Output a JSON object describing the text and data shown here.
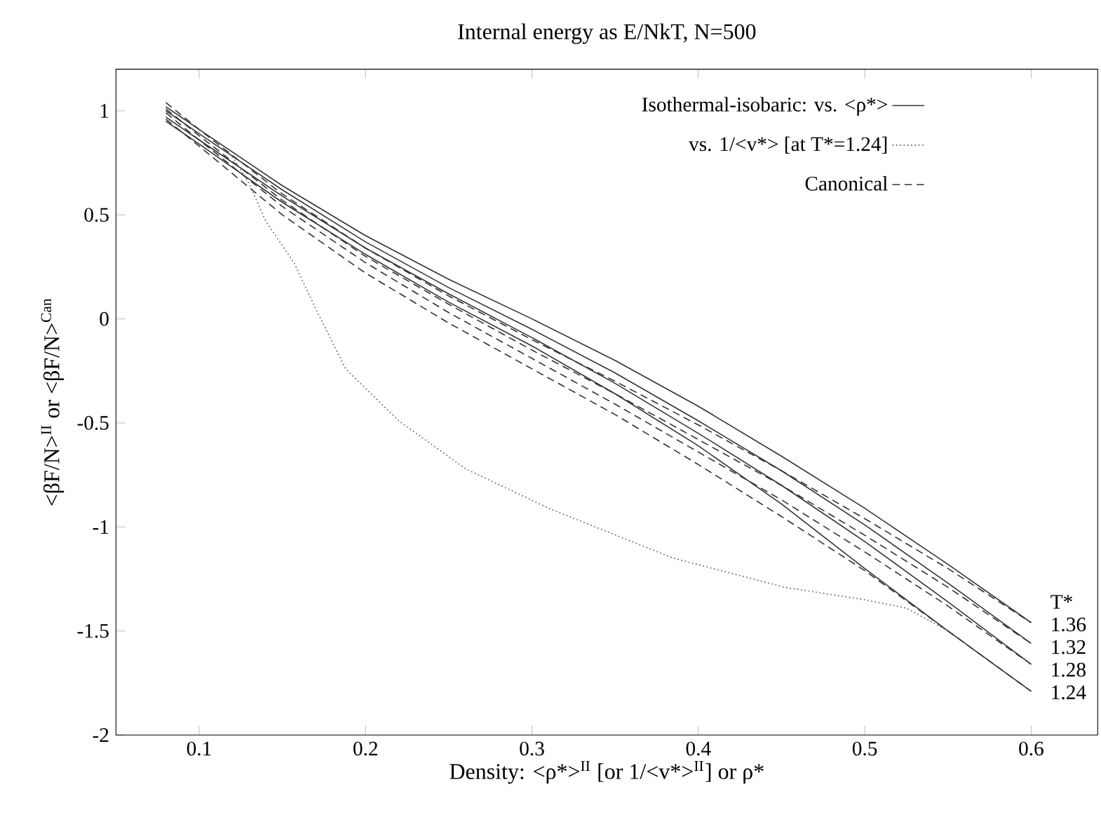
{
  "chart_data": {
    "type": "line",
    "title": "Internal energy as E/NkT, N=500",
    "xlabel": "Density: <ρ*>$^{II}$ [or 1/<v*>$^{II}$] or ρ*",
    "ylabel": "<βF/N>$^{II}$ or <βF/N>$^{Can}$",
    "xlim": [
      0.05,
      0.64
    ],
    "ylim": [
      -2,
      1.2
    ],
    "xticks": [
      0.1,
      0.2,
      0.3,
      0.4,
      0.5,
      0.6
    ],
    "yticks": [
      -2,
      -1.5,
      -1,
      -0.5,
      0,
      0.5,
      1
    ],
    "legend": "top right",
    "grid": false,
    "marker": "none",
    "series": [
      {
        "name": "Isothermal-isobaric: vs. <ρ*>",
        "color": "#333333",
        "line_style": "solid",
        "x": [
          0.08,
          0.1,
          0.15,
          0.2,
          0.25,
          0.3,
          0.35,
          0.4,
          0.45,
          0.5,
          0.55,
          0.6
        ],
        "values": [
          1.02,
          0.91,
          0.64,
          0.4,
          0.19,
          0.0,
          -0.2,
          -0.42,
          -0.66,
          -0.91,
          -1.18,
          -1.46
        ]
      },
      {
        "color": "#333333",
        "line_style": "solid",
        "x": [
          0.08,
          0.1,
          0.15,
          0.2,
          0.25,
          0.3,
          0.35,
          0.4,
          0.45,
          0.5,
          0.55,
          0.6
        ],
        "values": [
          1.0,
          0.89,
          0.62,
          0.37,
          0.15,
          -0.05,
          -0.26,
          -0.49,
          -0.73,
          -0.99,
          -1.27,
          -1.56
        ]
      },
      {
        "color": "#333333",
        "line_style": "solid",
        "x": [
          0.08,
          0.1,
          0.15,
          0.2,
          0.25,
          0.3,
          0.35,
          0.4,
          0.45,
          0.5,
          0.55,
          0.6
        ],
        "values": [
          0.97,
          0.86,
          0.59,
          0.34,
          0.12,
          -0.09,
          -0.31,
          -0.55,
          -0.8,
          -1.07,
          -1.36,
          -1.66
        ]
      },
      {
        "color": "#333333",
        "line_style": "solid",
        "x": [
          0.08,
          0.1,
          0.15,
          0.2,
          0.25,
          0.3,
          0.35,
          0.4,
          0.45,
          0.5,
          0.55,
          0.6
        ],
        "values": [
          0.95,
          0.84,
          0.56,
          0.31,
          0.08,
          -0.13,
          -0.36,
          -0.61,
          -0.89,
          -1.2,
          -1.5,
          -1.79
        ]
      },
      {
        "name": "vs. 1/<v*> [at T*=1.24]",
        "color": "#555555",
        "line_style": "dotted",
        "x": [
          0.12,
          0.13,
          0.14,
          0.157,
          0.17,
          0.188,
          0.22,
          0.26,
          0.31,
          0.385,
          0.452,
          0.5,
          0.525,
          0.55
        ],
        "values": [
          0.78,
          0.65,
          0.47,
          0.27,
          0.05,
          -0.24,
          -0.49,
          -0.72,
          -0.91,
          -1.15,
          -1.29,
          -1.35,
          -1.39,
          -1.5
        ]
      },
      {
        "name": "Canonical",
        "color": "#333333",
        "line_style": "dashed",
        "x": [
          0.08,
          0.1,
          0.15,
          0.2,
          0.25,
          0.3,
          0.35,
          0.4,
          0.45,
          0.5,
          0.55,
          0.6
        ],
        "values": [
          1.04,
          0.91,
          0.6,
          0.34,
          0.11,
          -0.1,
          -0.3,
          -0.51,
          -0.73,
          -0.96,
          -1.2,
          -1.46
        ]
      },
      {
        "color": "#333333",
        "line_style": "dashed",
        "x": [
          0.08,
          0.1,
          0.15,
          0.2,
          0.25,
          0.3,
          0.35,
          0.4,
          0.45,
          0.5,
          0.55,
          0.6
        ],
        "values": [
          1.01,
          0.88,
          0.57,
          0.3,
          0.07,
          -0.15,
          -0.36,
          -0.58,
          -0.8,
          -1.04,
          -1.29,
          -1.56
        ]
      },
      {
        "color": "#333333",
        "line_style": "dashed",
        "x": [
          0.08,
          0.1,
          0.15,
          0.2,
          0.25,
          0.3,
          0.35,
          0.4,
          0.45,
          0.5,
          0.55,
          0.6
        ],
        "values": [
          0.99,
          0.86,
          0.54,
          0.27,
          0.03,
          -0.19,
          -0.41,
          -0.64,
          -0.87,
          -1.12,
          -1.38,
          -1.66
        ]
      },
      {
        "color": "#333333",
        "line_style": "dashed",
        "x": [
          0.08,
          0.1,
          0.15,
          0.2,
          0.25,
          0.3,
          0.35,
          0.4,
          0.45,
          0.5,
          0.55,
          0.6
        ],
        "values": [
          0.96,
          0.83,
          0.5,
          0.22,
          -0.02,
          -0.24,
          -0.46,
          -0.7,
          -0.95,
          -1.21,
          -1.5,
          -1.79
        ]
      }
    ],
    "annotations": [
      "T*",
      "1.36",
      "1.32",
      "1.28",
      "1.24"
    ]
  }
}
